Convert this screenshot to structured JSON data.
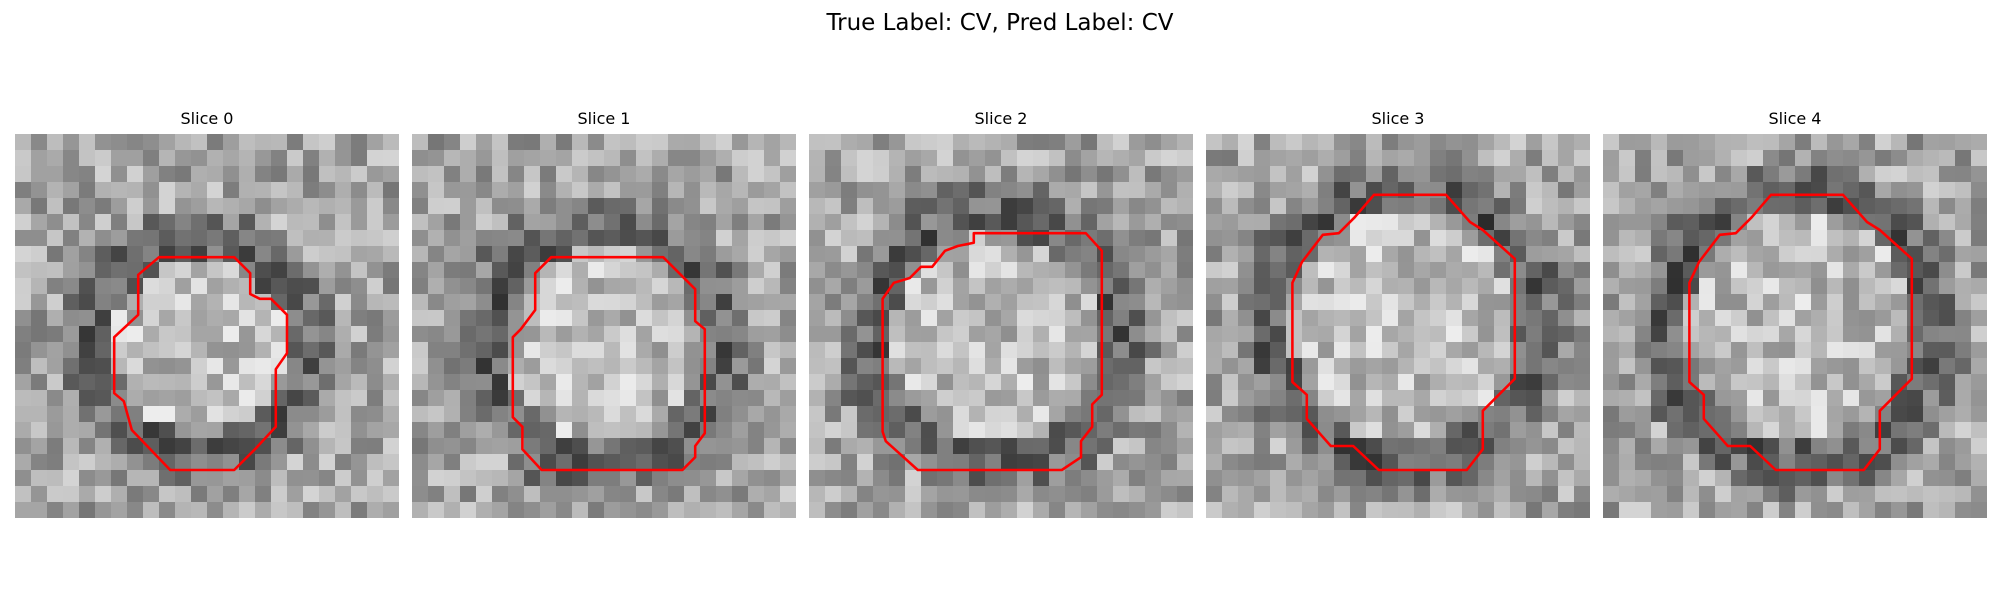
{
  "figure": {
    "title": "True Label: CV, Pred Label: CV"
  },
  "panels": [
    {
      "title": "Slice 0",
      "grid_size": 24,
      "outline_color": "#ff0000",
      "outline_points": [
        [
          9,
          7.7
        ],
        [
          13.7,
          7.7
        ],
        [
          14.7,
          8.7
        ],
        [
          14.7,
          10
        ],
        [
          15.3,
          10.3
        ],
        [
          16,
          10.3
        ],
        [
          17,
          11.3
        ],
        [
          17,
          13.7
        ],
        [
          16.3,
          14.7
        ],
        [
          16.3,
          18.3
        ],
        [
          15,
          19.7
        ],
        [
          13.7,
          21
        ],
        [
          9.7,
          21
        ],
        [
          7.3,
          18.5
        ],
        [
          6.8,
          16.7
        ],
        [
          6.2,
          16.2
        ],
        [
          6.2,
          12.7
        ],
        [
          7.7,
          11.3
        ],
        [
          7.7,
          8.8
        ]
      ]
    },
    {
      "title": "Slice 1",
      "grid_size": 24,
      "outline_color": "#ff0000",
      "outline_points": [
        [
          8.7,
          7.7
        ],
        [
          15.7,
          7.7
        ],
        [
          17.7,
          9.7
        ],
        [
          17.7,
          11.7
        ],
        [
          18.3,
          12.2
        ],
        [
          18.3,
          18.7
        ],
        [
          17.7,
          19.5
        ],
        [
          17.7,
          20.2
        ],
        [
          16.9,
          21
        ],
        [
          8.1,
          21
        ],
        [
          6.9,
          19.7
        ],
        [
          6.9,
          18.3
        ],
        [
          6.3,
          17.7
        ],
        [
          6.3,
          12.7
        ],
        [
          6.8,
          12.2
        ],
        [
          7.7,
          11
        ],
        [
          7.7,
          8.7
        ]
      ]
    },
    {
      "title": "Slice 2",
      "grid_size": 24,
      "outline_color": "#ff0000",
      "outline_points": [
        [
          10.3,
          6.2
        ],
        [
          17.3,
          6.2
        ],
        [
          18.3,
          7.3
        ],
        [
          18.3,
          16.3
        ],
        [
          17.7,
          16.9
        ],
        [
          17.7,
          18.3
        ],
        [
          17,
          19.2
        ],
        [
          17,
          20.2
        ],
        [
          15.8,
          21
        ],
        [
          6.8,
          21
        ],
        [
          4.8,
          19.2
        ],
        [
          4.6,
          18.6
        ],
        [
          4.6,
          10.3
        ],
        [
          5.3,
          9.3
        ],
        [
          6.3,
          9
        ],
        [
          7,
          8.3
        ],
        [
          7.7,
          8.3
        ],
        [
          8.5,
          7.3
        ],
        [
          9.3,
          7
        ],
        [
          10.3,
          6.8
        ]
      ]
    },
    {
      "title": "Slice 3",
      "grid_size": 24,
      "outline_color": "#ff0000",
      "outline_points": [
        [
          10.5,
          3.8
        ],
        [
          15,
          3.8
        ],
        [
          16.5,
          5.5
        ],
        [
          17.3,
          6
        ],
        [
          19.3,
          7.8
        ],
        [
          19.3,
          15.3
        ],
        [
          17.3,
          17.3
        ],
        [
          17.3,
          19.7
        ],
        [
          16.3,
          21
        ],
        [
          10.8,
          21
        ],
        [
          9.2,
          19.5
        ],
        [
          7.8,
          19.5
        ],
        [
          6.3,
          17.8
        ],
        [
          6.3,
          16.3
        ],
        [
          5.4,
          15.5
        ],
        [
          5.4,
          9.3
        ],
        [
          6,
          8
        ],
        [
          7.3,
          6.3
        ],
        [
          8.3,
          6.2
        ],
        [
          9.3,
          5.2
        ]
      ]
    },
    {
      "title": "Slice 4",
      "grid_size": 24,
      "outline_color": "#ff0000",
      "outline_points": [
        [
          10.5,
          3.8
        ],
        [
          15,
          3.8
        ],
        [
          16.5,
          5.5
        ],
        [
          17.3,
          6
        ],
        [
          19.3,
          7.8
        ],
        [
          19.3,
          15.3
        ],
        [
          17.3,
          17.3
        ],
        [
          17.3,
          19.7
        ],
        [
          16.3,
          21
        ],
        [
          10.8,
          21
        ],
        [
          9.2,
          19.5
        ],
        [
          7.8,
          19.5
        ],
        [
          6.3,
          17.8
        ],
        [
          6.3,
          16.3
        ],
        [
          5.4,
          15.5
        ],
        [
          5.4,
          9.3
        ],
        [
          6,
          8
        ],
        [
          7.3,
          6.3
        ],
        [
          8.3,
          6.2
        ],
        [
          9.3,
          5.2
        ]
      ]
    }
  ]
}
